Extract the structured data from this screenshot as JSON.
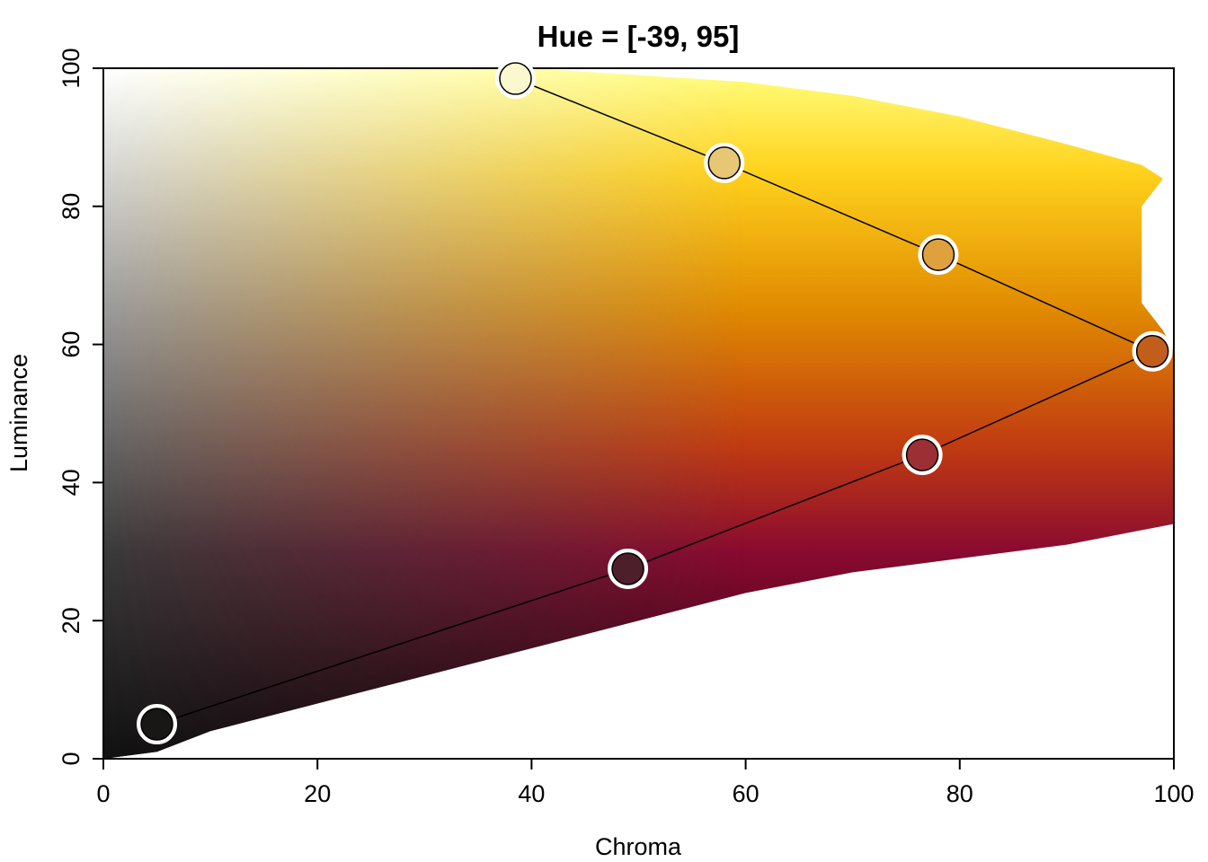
{
  "chart_data": {
    "type": "scatter",
    "title": "Hue = [-39, 95]",
    "xlabel": "Chroma",
    "ylabel": "Luminance",
    "xlim": [
      0,
      100
    ],
    "ylim": [
      0,
      100
    ],
    "x_ticks": [
      0,
      20,
      40,
      60,
      80,
      100
    ],
    "y_ticks": [
      0,
      20,
      40,
      60,
      80,
      100
    ],
    "x_tick_labels": [
      "0",
      "20",
      "40",
      "60",
      "80",
      "100"
    ],
    "y_tick_labels": [
      "0",
      "20",
      "40",
      "60",
      "80",
      "100"
    ],
    "grid": false,
    "legend": "none",
    "background_region": {
      "description_colors": {
        "white": "#ffffff",
        "black": "#111111",
        "yellow": "#ffff80",
        "gold": "#ffc800",
        "orange": "#e38800",
        "red": "#9a0030",
        "dark_red": "#3a0010"
      },
      "upper_boundary": [
        [
          0,
          100
        ],
        [
          40,
          100
        ],
        [
          60,
          98
        ],
        [
          70,
          96
        ],
        [
          80,
          93
        ],
        [
          90,
          89
        ],
        [
          97,
          86
        ],
        [
          99,
          84
        ]
      ],
      "right_boundary": [
        [
          97,
          80
        ],
        [
          97,
          66
        ],
        [
          99,
          62
        ],
        [
          100,
          59
        ],
        [
          100,
          35
        ]
      ],
      "lower_boundary": [
        [
          100,
          34
        ],
        [
          90,
          31
        ],
        [
          80,
          29
        ],
        [
          70,
          27
        ],
        [
          60,
          24
        ],
        [
          50,
          20
        ],
        [
          40,
          16
        ],
        [
          30,
          12
        ],
        [
          20,
          8
        ],
        [
          10,
          4
        ],
        [
          5,
          1
        ],
        [
          0,
          0
        ]
      ]
    },
    "series": [
      {
        "values": [
          {
            "x": 5,
            "y": 5,
            "color": "#191616"
          },
          {
            "x": 49,
            "y": 27.5,
            "color": "#4d1f2a"
          },
          {
            "x": 76.5,
            "y": 44,
            "color": "#9c2f34"
          },
          {
            "x": 98,
            "y": 59,
            "color": "#c25e1c"
          },
          {
            "x": 78,
            "y": 73,
            "color": "#dea13e"
          },
          {
            "x": 58,
            "y": 86.3,
            "color": "#e8c774"
          },
          {
            "x": 38.5,
            "y": 98.5,
            "color": "#fbf8d0"
          }
        ]
      }
    ]
  }
}
